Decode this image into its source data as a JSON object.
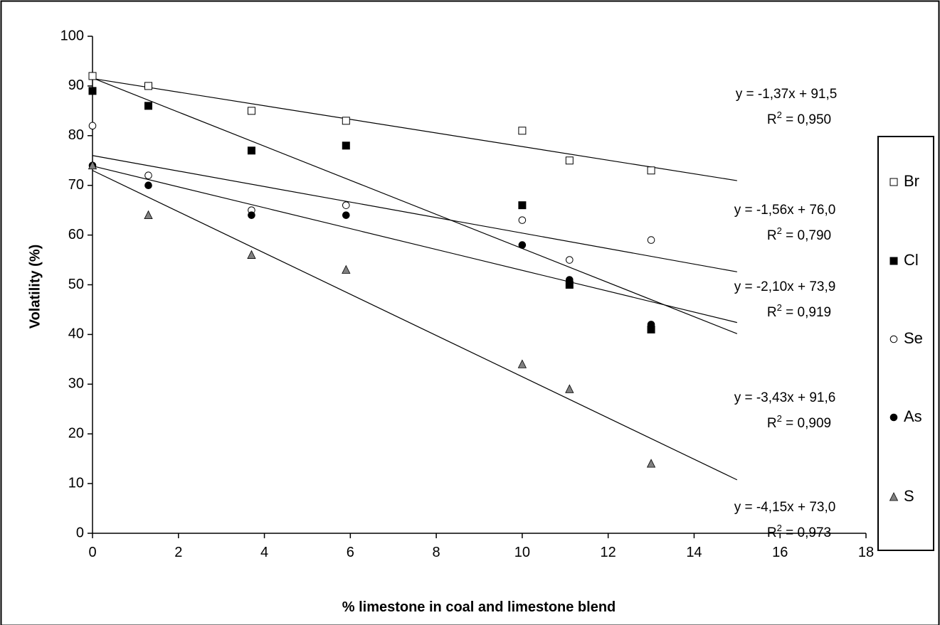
{
  "chart_data": {
    "type": "scatter",
    "xlabel": "% limestone in coal and limestone blend",
    "ylabel": "Volatility (%)",
    "xlim": [
      0,
      18
    ],
    "ylim": [
      0,
      100
    ],
    "x_ticks": [
      "0",
      "2",
      "4",
      "6",
      "8",
      "10",
      "12",
      "14",
      "16",
      "18"
    ],
    "y_ticks": [
      "0",
      "10",
      "20",
      "30",
      "40",
      "50",
      "60",
      "70",
      "80",
      "90",
      "100"
    ],
    "grid": false,
    "legend_position": "right",
    "series": [
      {
        "name": "Br",
        "marker": "open-square",
        "color": "#000000",
        "x": [
          0,
          1.3,
          3.7,
          5.9,
          10,
          11.1,
          13
        ],
        "y": [
          92,
          90,
          85,
          83,
          81,
          75,
          73
        ]
      },
      {
        "name": "Cl",
        "marker": "filled-square",
        "color": "#000000",
        "x": [
          0,
          1.3,
          3.7,
          5.9,
          10,
          11.1,
          13
        ],
        "y": [
          89,
          86,
          77,
          78,
          66,
          50,
          41
        ]
      },
      {
        "name": "Se",
        "marker": "open-circle",
        "color": "#000000",
        "x": [
          0,
          1.3,
          3.7,
          5.9,
          10,
          11.1,
          13
        ],
        "y": [
          82,
          72,
          65,
          66,
          63,
          55,
          59
        ]
      },
      {
        "name": "As",
        "marker": "filled-circle",
        "color": "#000000",
        "x": [
          0,
          1.3,
          3.7,
          5.9,
          10,
          11.1,
          13
        ],
        "y": [
          74,
          70,
          64,
          64,
          58,
          51,
          42
        ]
      },
      {
        "name": "S",
        "marker": "gray-triangle",
        "color": "#808080",
        "x": [
          0,
          1.3,
          3.7,
          5.9,
          10,
          11.1,
          13
        ],
        "y": [
          74,
          64,
          56,
          53,
          34,
          29,
          14
        ]
      }
    ],
    "trendlines": [
      {
        "slope": -1.37,
        "intercept": 91.5,
        "x_range": [
          0,
          15
        ]
      },
      {
        "slope": -3.43,
        "intercept": 91.6,
        "x_range": [
          0,
          15
        ]
      },
      {
        "slope": -1.56,
        "intercept": 76.0,
        "x_range": [
          0,
          15
        ]
      },
      {
        "slope": -2.1,
        "intercept": 73.9,
        "x_range": [
          0,
          15
        ]
      },
      {
        "slope": -4.15,
        "intercept": 73.0,
        "x_range": [
          0,
          15
        ]
      }
    ],
    "annotations": [
      {
        "equation": "y = -1,37x + 91,5",
        "r2_prefix": "R",
        "r2_exp": "2",
        "r2_value": " = 0,950"
      },
      {
        "equation": "y = -1,56x + 76,0",
        "r2_prefix": "R",
        "r2_exp": "2",
        "r2_value": " = 0,790"
      },
      {
        "equation": "y = -2,10x + 73,9",
        "r2_prefix": "R",
        "r2_exp": "2",
        "r2_value": " = 0,919"
      },
      {
        "equation": "y = -3,43x + 91,6",
        "r2_prefix": "R",
        "r2_exp": "2",
        "r2_value": " = 0,909"
      },
      {
        "equation": "y = -4,15x + 73,0",
        "r2_prefix": "R",
        "r2_exp": "2",
        "r2_value": " = 0,973"
      }
    ]
  }
}
